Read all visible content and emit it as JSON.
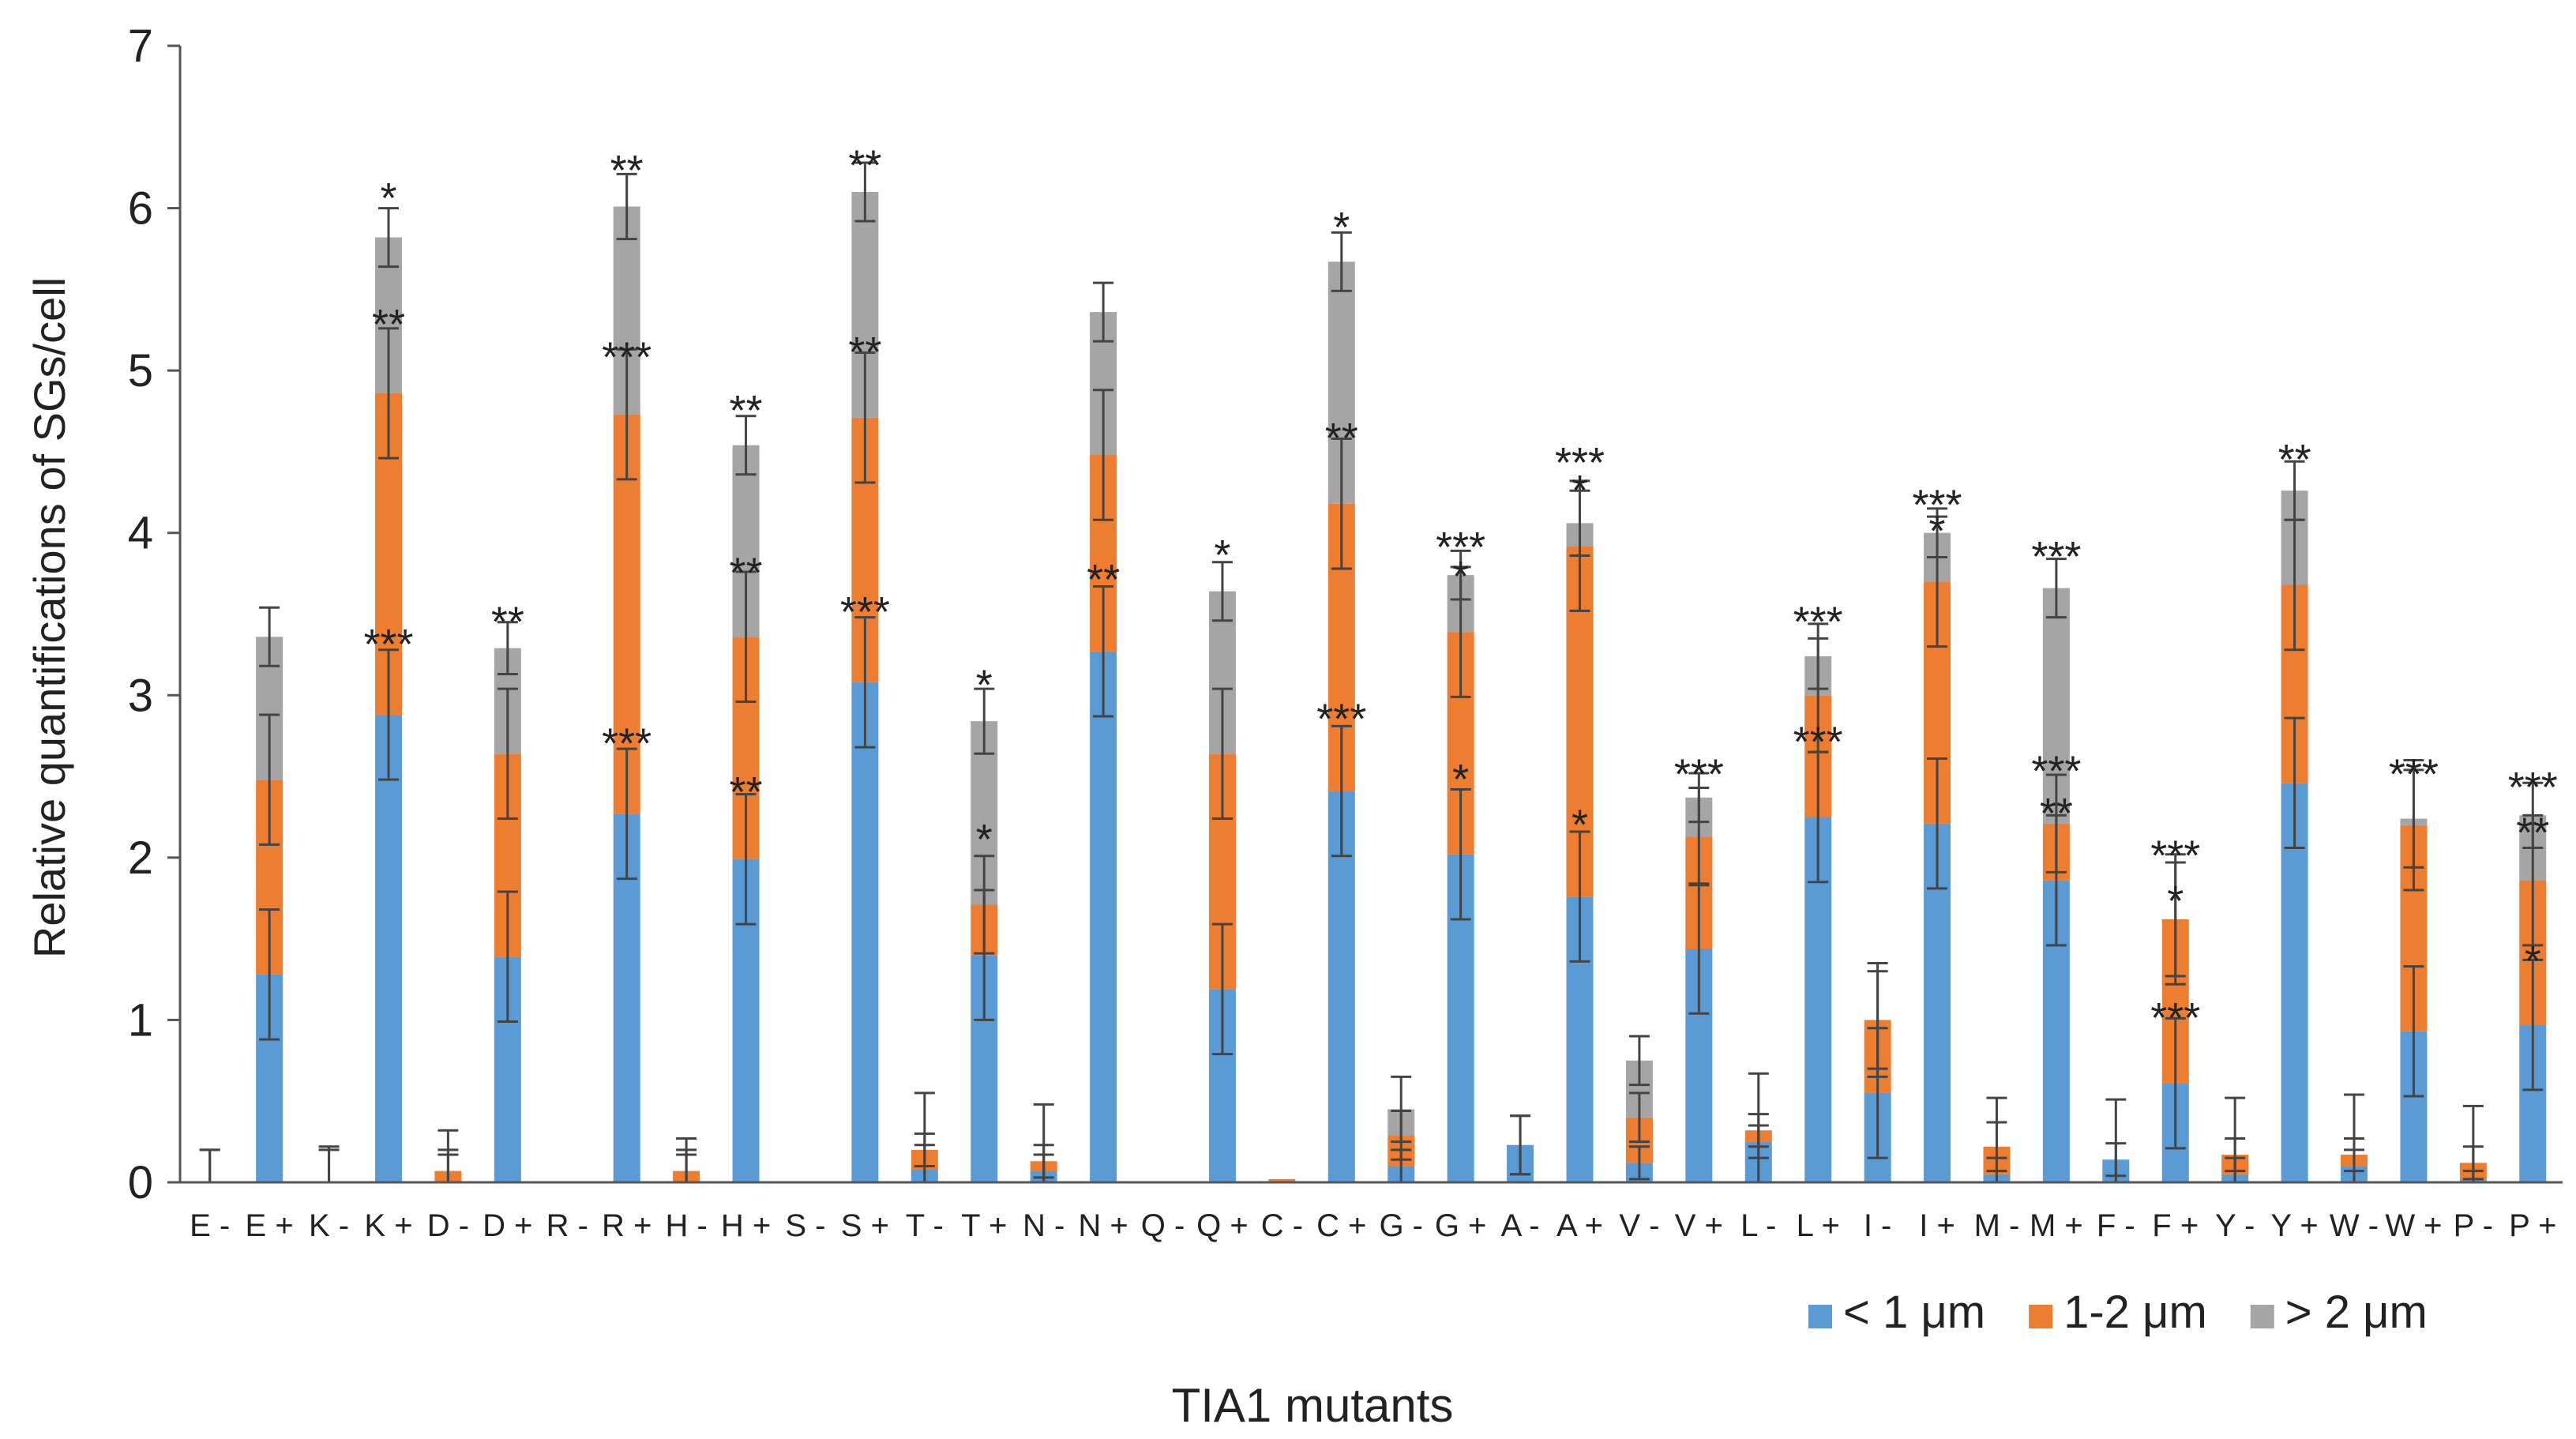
{
  "chart_data": {
    "type": "bar",
    "stacked": true,
    "title": "",
    "xlabel": "TIA1 mutants",
    "ylabel": "Relative quantifications of SGs/cell",
    "ylim": [
      0,
      7
    ],
    "yticks": [
      0,
      1,
      2,
      3,
      4,
      5,
      6,
      7
    ],
    "legend_position": "bottom-right",
    "categories": [
      "E -",
      "E +",
      "K -",
      "K +",
      "D -",
      "D +",
      "R -",
      "R +",
      "H -",
      "H +",
      "S -",
      "S +",
      "T -",
      "T +",
      "N -",
      "N +",
      "Q -",
      "Q +",
      "C -",
      "C +",
      "G -",
      "G +",
      "A -",
      "A +",
      "V -",
      "V +",
      "L -",
      "L +",
      "I -",
      "I +",
      "M -",
      "M +",
      "F -",
      "F +",
      "Y -",
      "Y +",
      "W -",
      "W +",
      "P -",
      "P +"
    ],
    "series": [
      {
        "name": "< 1 μm",
        "color": "#5b9bd5",
        "values": [
          0,
          1.28,
          0,
          2.88,
          0,
          1.39,
          0,
          2.27,
          0,
          1.99,
          0,
          3.08,
          0.08,
          1.4,
          0.07,
          3.27,
          0,
          1.19,
          0,
          2.41,
          0.1,
          2.02,
          0.23,
          1.76,
          0.12,
          1.44,
          0.25,
          2.25,
          0.55,
          2.21,
          0.05,
          1.86,
          0.14,
          0.61,
          0.05,
          2.46,
          0.1,
          0.93,
          0.02,
          0.97
        ],
        "errors": [
          0.2,
          0.4,
          0.2,
          0.4,
          0.2,
          0.4,
          0,
          0.4,
          0.2,
          0.4,
          0,
          0.4,
          0.15,
          0.4,
          0.1,
          0.4,
          0,
          0.4,
          0,
          0.4,
          0.1,
          0.4,
          0.18,
          0.4,
          0.1,
          0.4,
          0.1,
          0.4,
          0.4,
          0.4,
          0.1,
          0.4,
          0.1,
          0.4,
          0.1,
          0.4,
          0.1,
          0.4,
          0.05,
          0.4
        ]
      },
      {
        "name": "1-2 μm",
        "color": "#ed7d31",
        "values": [
          0,
          1.2,
          0,
          1.98,
          0.07,
          1.25,
          0,
          2.46,
          0.07,
          1.37,
          0,
          1.63,
          0.12,
          0.31,
          0.06,
          1.21,
          0,
          1.45,
          0.02,
          1.77,
          0.19,
          1.37,
          0,
          2.16,
          0.28,
          0.69,
          0.07,
          0.75,
          0.45,
          1.49,
          0.17,
          0.35,
          0,
          1.01,
          0.12,
          1.22,
          0.07,
          1.27,
          0.1,
          0.89
        ],
        "errors": [
          0,
          0.4,
          0,
          0.4,
          0.1,
          0.4,
          0,
          0.4,
          0.1,
          0.4,
          0,
          0.4,
          0.1,
          0.3,
          0.1,
          0.4,
          0,
          0.4,
          0,
          0.4,
          0.15,
          0.4,
          0,
          0.4,
          0.15,
          0.3,
          0.1,
          0.35,
          0.3,
          0.4,
          0.15,
          0.3,
          0,
          0.4,
          0.1,
          0.4,
          0.1,
          0.4,
          0.1,
          0.4
        ]
      },
      {
        "name": "> 2 μm",
        "color": "#a5a5a5",
        "values": [
          0,
          0.88,
          0,
          0.96,
          0,
          0.65,
          0,
          1.28,
          0,
          1.18,
          0,
          1.39,
          0,
          1.13,
          0,
          0.88,
          0,
          1.0,
          0,
          1.49,
          0.16,
          0.35,
          0,
          0.14,
          0.35,
          0.24,
          0,
          0.24,
          0,
          0.3,
          0,
          1.45,
          0,
          0,
          0,
          0.58,
          0,
          0.04,
          0,
          0.4
        ],
        "errors": [
          0.2,
          0.18,
          0.22,
          0.18,
          0.25,
          0.16,
          0,
          0.2,
          0.2,
          0.18,
          0,
          0.18,
          0.35,
          0.2,
          0.35,
          0.18,
          0,
          0.18,
          0,
          0.18,
          0.2,
          0.15,
          0.18,
          0.2,
          0.15,
          0.15,
          0.35,
          0.2,
          0.35,
          0.15,
          0.3,
          0.18,
          0.37,
          0.35,
          0.35,
          0.18,
          0.37,
          0.3,
          0.35,
          0.2
        ]
      }
    ],
    "annotations": [
      {
        "category": "K +",
        "y": 6.13,
        "text": "*"
      },
      {
        "category": "K +",
        "y": 5.35,
        "text": "**"
      },
      {
        "category": "K +",
        "y": 3.38,
        "text": "***"
      },
      {
        "category": "D +",
        "y": 3.52,
        "text": "**"
      },
      {
        "category": "R +",
        "y": 6.3,
        "text": "**"
      },
      {
        "category": "R +",
        "y": 5.15,
        "text": "***"
      },
      {
        "category": "R +",
        "y": 2.77,
        "text": "***"
      },
      {
        "category": "H +",
        "y": 4.82,
        "text": "**"
      },
      {
        "category": "H +",
        "y": 3.82,
        "text": "**"
      },
      {
        "category": "H +",
        "y": 2.47,
        "text": "**"
      },
      {
        "category": "S +",
        "y": 6.33,
        "text": "**"
      },
      {
        "category": "S +",
        "y": 5.18,
        "text": "**"
      },
      {
        "category": "S +",
        "y": 3.58,
        "text": "***"
      },
      {
        "category": "T +",
        "y": 3.13,
        "text": "*"
      },
      {
        "category": "T +",
        "y": 2.18,
        "text": "*"
      },
      {
        "category": "N +",
        "y": 3.78,
        "text": "**"
      },
      {
        "category": "Q +",
        "y": 3.93,
        "text": "*"
      },
      {
        "category": "C +",
        "y": 5.95,
        "text": "*"
      },
      {
        "category": "C +",
        "y": 4.65,
        "text": "**"
      },
      {
        "category": "C +",
        "y": 2.92,
        "text": "***"
      },
      {
        "category": "G +",
        "y": 3.98,
        "text": "***"
      },
      {
        "category": "G +",
        "y": 3.8,
        "text": "*"
      },
      {
        "category": "G +",
        "y": 2.55,
        "text": "*"
      },
      {
        "category": "A +",
        "y": 4.5,
        "text": "***"
      },
      {
        "category": "A +",
        "y": 4.33,
        "text": "*"
      },
      {
        "category": "A +",
        "y": 2.27,
        "text": "*"
      },
      {
        "category": "V +",
        "y": 2.58,
        "text": "***"
      },
      {
        "category": "L +",
        "y": 3.52,
        "text": "***"
      },
      {
        "category": "L +",
        "y": 2.78,
        "text": "***"
      },
      {
        "category": "I +",
        "y": 4.24,
        "text": "***"
      },
      {
        "category": "I +",
        "y": 4.08,
        "text": "*"
      },
      {
        "category": "M +",
        "y": 3.92,
        "text": "***"
      },
      {
        "category": "M +",
        "y": 2.6,
        "text": "***"
      },
      {
        "category": "M +",
        "y": 2.34,
        "text": "**"
      },
      {
        "category": "F +",
        "y": 2.08,
        "text": "***"
      },
      {
        "category": "F +",
        "y": 1.8,
        "text": "*"
      },
      {
        "category": "F +",
        "y": 1.08,
        "text": "***"
      },
      {
        "category": "Y +",
        "y": 4.52,
        "text": "**"
      },
      {
        "category": "W +",
        "y": 2.58,
        "text": "***"
      },
      {
        "category": "P +",
        "y": 2.5,
        "text": "***"
      },
      {
        "category": "P +",
        "y": 2.22,
        "text": "**"
      },
      {
        "category": "P +",
        "y": 1.43,
        "text": "*"
      }
    ]
  }
}
